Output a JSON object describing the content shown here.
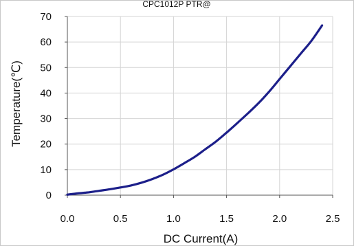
{
  "chart_data": {
    "type": "line",
    "title": "CPC1012P PTR@",
    "xlabel": "DC Current(A)",
    "ylabel": "Temperature(℃)",
    "xlim": [
      0,
      2.5
    ],
    "ylim": [
      0,
      70
    ],
    "xticks": [
      0.0,
      0.5,
      1.0,
      1.5,
      2.0,
      2.5
    ],
    "xtick_labels": [
      "0.0",
      "0.5",
      "1.0",
      "1.5",
      "2.0",
      "2.5"
    ],
    "yticks": [
      0,
      10,
      20,
      30,
      40,
      50,
      60,
      70
    ],
    "ytick_labels": [
      "0",
      "10",
      "20",
      "30",
      "40",
      "50",
      "60",
      "70"
    ],
    "grid": true,
    "series": [
      {
        "color": "#1c1f8a",
        "x": [
          0.0,
          0.1,
          0.2,
          0.3,
          0.4,
          0.5,
          0.6,
          0.7,
          0.8,
          0.9,
          1.0,
          1.1,
          1.2,
          1.3,
          1.4,
          1.5,
          1.6,
          1.7,
          1.8,
          1.9,
          2.0,
          2.1,
          2.2,
          2.3,
          2.4
        ],
        "y": [
          0.2,
          0.7,
          1.1,
          1.7,
          2.3,
          3.0,
          3.8,
          4.9,
          6.3,
          8.0,
          10.1,
          12.5,
          15.0,
          18.0,
          21.0,
          24.5,
          28.2,
          32.0,
          36.0,
          40.5,
          45.5,
          50.5,
          55.5,
          60.5,
          66.5
        ]
      }
    ]
  }
}
